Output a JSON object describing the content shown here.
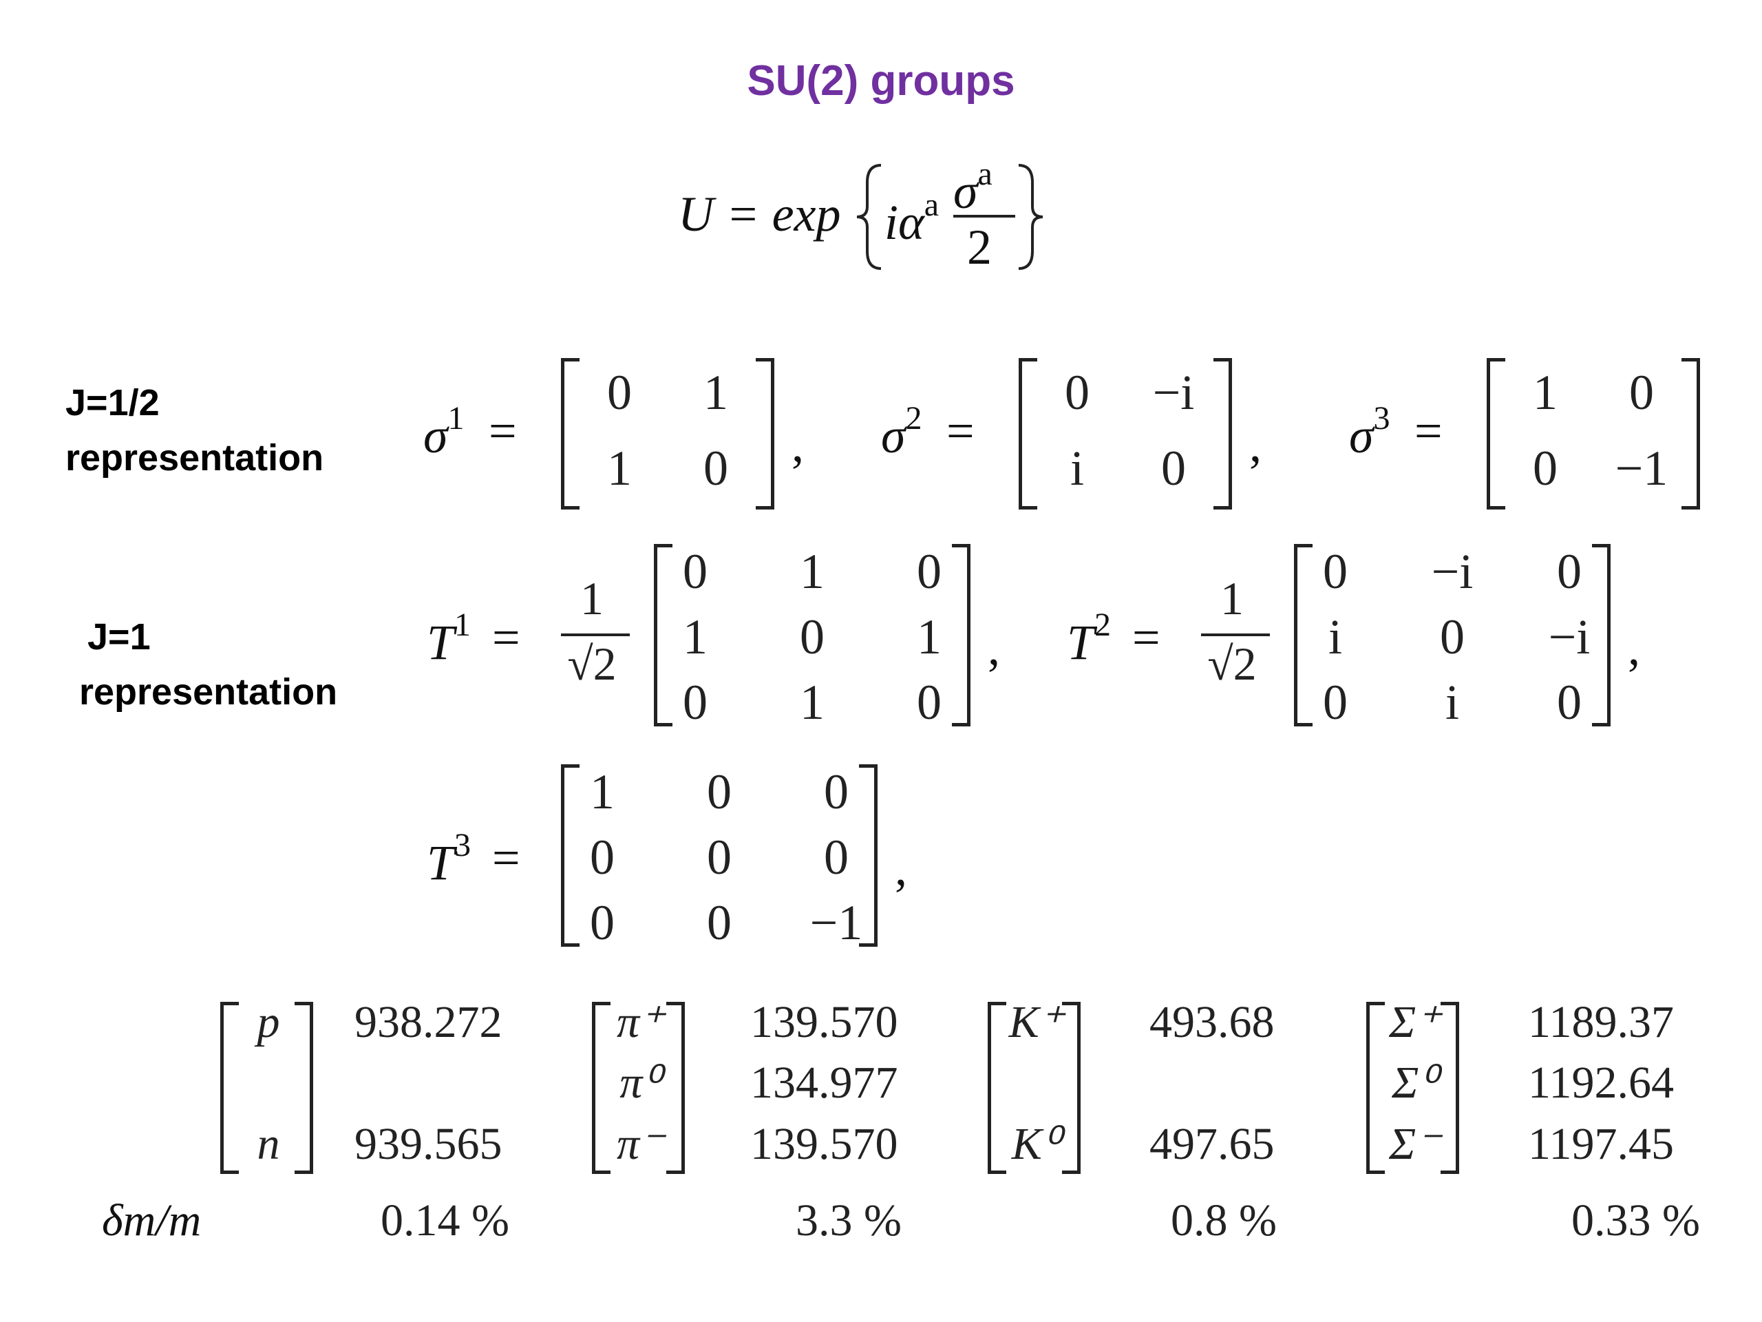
{
  "title": "SU(2) groups",
  "formula": {
    "lhs": "U = exp",
    "inner_i_alpha": "iα",
    "inner_sup_a": "a",
    "frac_num": "σ",
    "frac_num_sup": "a",
    "frac_den": "2"
  },
  "labels": {
    "j_half_line1": "J=1/2",
    "j_half_line2": "representation",
    "j_one_line1": "J=1",
    "j_one_line2": "representation"
  },
  "sigma": [
    {
      "sym": "σ",
      "sup": "1",
      "cells": [
        "0",
        "1",
        "1",
        "0"
      ]
    },
    {
      "sym": "σ",
      "sup": "2",
      "cells": [
        "0",
        "−i",
        "i",
        "0"
      ]
    },
    {
      "sym": "σ",
      "sup": "3",
      "cells": [
        "1",
        "0",
        "0",
        "−1"
      ]
    }
  ],
  "T": [
    {
      "sym": "T",
      "sup": "1",
      "frac_num": "1",
      "frac_den": "√2",
      "cells": [
        "0",
        "1",
        "0",
        "1",
        "0",
        "1",
        "0",
        "1",
        "0"
      ]
    },
    {
      "sym": "T",
      "sup": "2",
      "frac_num": "1",
      "frac_den": "√2",
      "cells": [
        "0",
        "−i",
        "0",
        "i",
        "0",
        "−i",
        "0",
        "i",
        "0"
      ]
    },
    {
      "sym": "T",
      "sup": "3",
      "cells": [
        "1",
        "0",
        "0",
        "0",
        "0",
        "0",
        "0",
        "0",
        "−1"
      ]
    }
  ],
  "equals": "=",
  "comma": ",",
  "multiplets": [
    {
      "particles": [
        "p",
        "",
        "n"
      ],
      "masses": [
        "938.272",
        "",
        "939.565"
      ],
      "dm": "0.14 %"
    },
    {
      "particles": [
        "π⁺",
        "π⁰",
        "π⁻"
      ],
      "masses": [
        "139.570",
        "134.977",
        "139.570"
      ],
      "dm": "3.3 %"
    },
    {
      "particles": [
        "K⁺",
        "",
        "K⁰"
      ],
      "masses": [
        "493.68",
        "",
        "497.65"
      ],
      "dm": "0.8 %"
    },
    {
      "particles": [
        "Σ⁺",
        "Σ⁰",
        "Σ⁻"
      ],
      "masses": [
        "1189.37",
        "1192.64",
        "1197.45"
      ],
      "dm": "0.33 %"
    }
  ],
  "dm_label": "δm/m"
}
